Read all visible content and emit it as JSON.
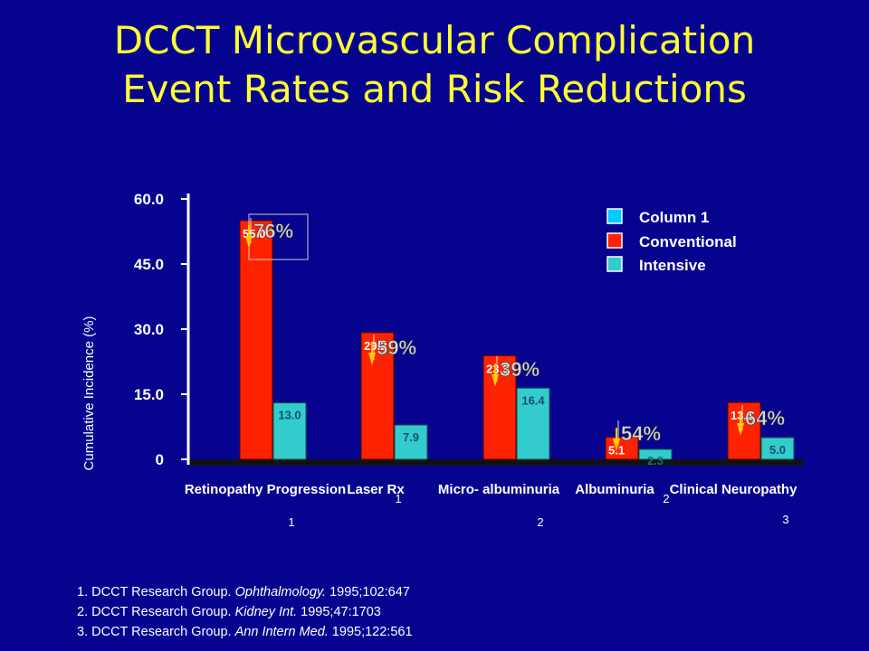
{
  "slide": {
    "title_line1": "DCCT Microvascular Complication",
    "title_line2": "Event Rates and Risk Reductions"
  },
  "chart_data": {
    "type": "bar",
    "ylabel": "Cumulative Incidence (%)",
    "ylim": [
      0,
      60
    ],
    "yticks": [
      "60.0",
      "45.0",
      "30.0",
      "15.0",
      "0"
    ],
    "categories": [
      "Retinopathy Progression",
      "Laser Rx",
      "Micro- albuminuria",
      "Albuminuria",
      "Clinical Neuropathy"
    ],
    "series": [
      {
        "name": "Conventional",
        "color": "#ff2200",
        "values": [
          55.0,
          29.2,
          23.9,
          5.1,
          13.1
        ],
        "labels": [
          "55.0",
          "29.2",
          "23.9",
          "5.1",
          "13.1"
        ]
      },
      {
        "name": "Intensive",
        "color": "#33cccc",
        "values": [
          13.0,
          7.9,
          16.4,
          2.3,
          5.0
        ],
        "labels": [
          "13.0",
          "7.9",
          "16.4",
          "2.3",
          "5.0"
        ]
      }
    ],
    "legend": [
      "Column 1",
      "Conventional",
      "Intensive"
    ],
    "legend_colors": [
      "#00ccff",
      "#ff2200",
      "#33cccc"
    ],
    "legend_placement": "top-right",
    "risk_reductions": [
      "76%",
      "59%",
      "39%",
      "54%",
      "64%"
    ],
    "footnote_markers": [
      "1",
      "1",
      "2",
      "2",
      "3"
    ]
  },
  "references": [
    {
      "n": "1. ",
      "authors": "DCCT Research Group. ",
      "journal": "Ophthalmology.",
      "cite": " 1995;102:647"
    },
    {
      "n": "2. ",
      "authors": "DCCT Research Group. ",
      "journal": "Kidney Int.",
      "cite": " 1995;47:1703"
    },
    {
      "n": "3. ",
      "authors": "DCCT Research Group. ",
      "journal": "Ann Intern Med.",
      "cite": " 1995;122:561"
    }
  ]
}
